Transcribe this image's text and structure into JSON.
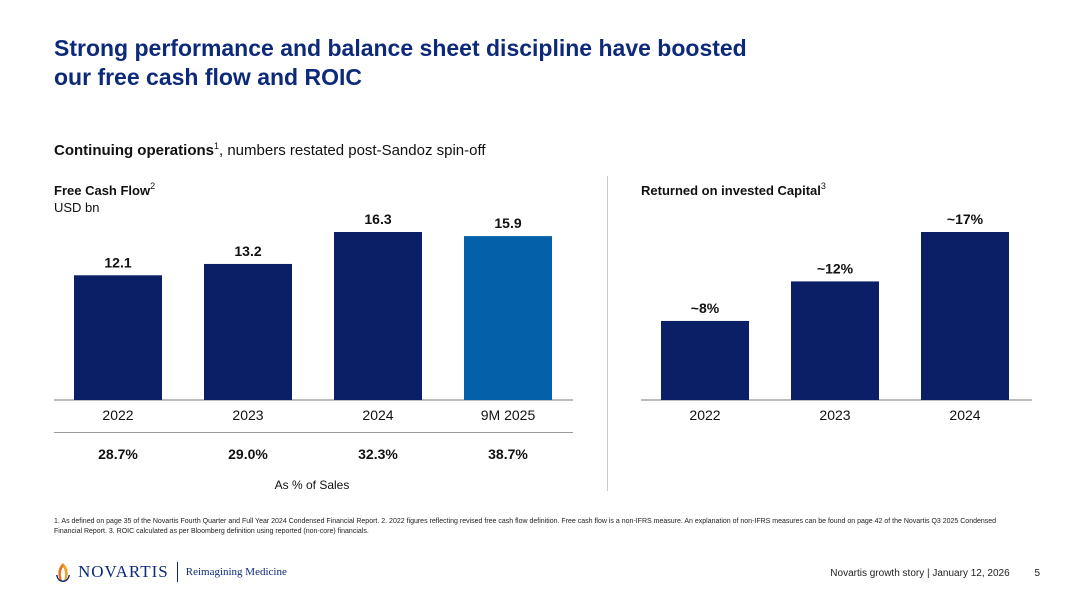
{
  "title": {
    "line1": "Strong performance and balance sheet discipline have boosted",
    "line2": "our free cash flow and ROIC"
  },
  "subtitle": {
    "bold": "Continuing operations",
    "sup": "1",
    "rest": ", numbers restated post-Sandoz spin-off"
  },
  "fcf_header": {
    "label": "Free Cash Flow",
    "sup": "2",
    "unit": "USD bn"
  },
  "roic_header": {
    "label": "Returned on invested Capital",
    "sup": "3"
  },
  "pct_caption": "As % of Sales",
  "footnote": "1. As defined on page 35 of the Novartis Fourth Quarter and Full Year 2024 Condensed Financial Report.     2. 2022 figures reflecting revised free cash flow definition. Free cash flow is a non-IFRS measure. An explanation of non-IFRS measures can be found on page 42 of the Novartis Q3 2025 Condensed Financial Report.     3. ROIC calculated as per Bloomberg definition using reported (non-core) financials.",
  "logo": {
    "brand": "NOVARTIS",
    "tagline": "Reimagining Medicine"
  },
  "footer": {
    "text": "Novartis growth story | January 12, 2026",
    "page": "5"
  },
  "colors": {
    "navy": "#0a1f66",
    "blue": "#0460a9",
    "title": "#0d2a7a"
  },
  "chart_data": [
    {
      "type": "bar",
      "title": "Free Cash Flow",
      "ylabel": "USD bn",
      "categories": [
        "2022",
        "2023",
        "2024",
        "9M 2025"
      ],
      "values": [
        12.1,
        13.2,
        16.3,
        15.9
      ],
      "labels": [
        "12.1",
        "13.2",
        "16.3",
        "15.9"
      ],
      "pct_of_sales": [
        "28.7%",
        "29.0%",
        "32.3%",
        "38.7%"
      ],
      "highlight_index": 3,
      "ylim": [
        0,
        16.3
      ]
    },
    {
      "type": "bar",
      "title": "Returned on invested Capital",
      "categories": [
        "2022",
        "2023",
        "2024"
      ],
      "values": [
        8,
        12,
        17
      ],
      "labels": [
        "~8%",
        "~12%",
        "~17%"
      ],
      "ylim": [
        0,
        17
      ]
    }
  ]
}
